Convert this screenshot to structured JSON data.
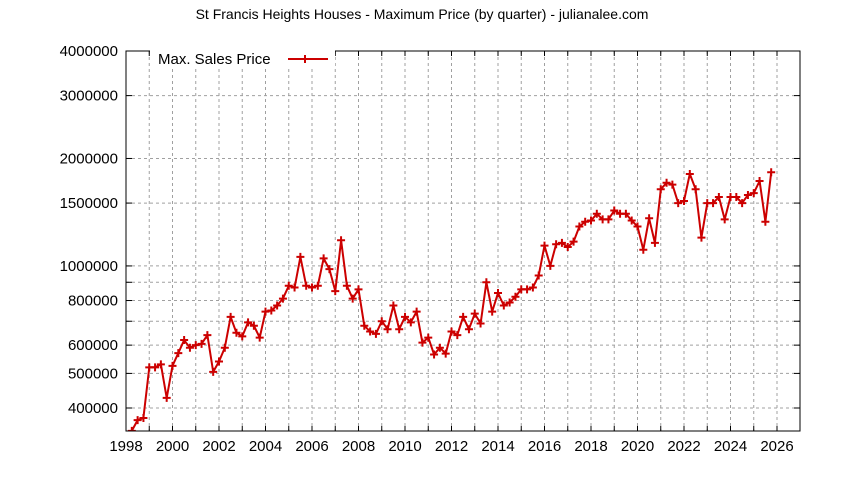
{
  "title": "St Francis Heights Houses - Maximum Price (by quarter) - julianalee.com",
  "legend": {
    "label": "Max. Sales Price",
    "color": "#cc0000"
  },
  "colors": {
    "series": "#cc0000",
    "grid": "#a0a0a0",
    "axis": "#000000"
  },
  "chart_data": {
    "type": "line",
    "title": "St Francis Heights Houses - Maximum Price (by quarter) - julianalee.com",
    "xlabel": "",
    "ylabel": "",
    "yscale": "log",
    "xlim": [
      1998,
      2027
    ],
    "ylim": [
      345000,
      4000000
    ],
    "grid": true,
    "legend_position": "top-left",
    "x_ticks": [
      1998,
      2000,
      2002,
      2004,
      2006,
      2008,
      2010,
      2012,
      2014,
      2016,
      2018,
      2020,
      2022,
      2024,
      2026
    ],
    "y_ticks": [
      400000,
      500000,
      600000,
      800000,
      1000000,
      1500000,
      2000000,
      3000000,
      4000000
    ],
    "y_tick_labels": [
      "400000",
      "500000",
      "600000",
      "800000",
      "1000000",
      "1500000",
      "2000000",
      "3000000",
      "4000000"
    ],
    "y_minor_gridlines": [
      700000,
      900000
    ],
    "series": [
      {
        "name": "Max. Sales Price",
        "x": [
          1998.25,
          1998.5,
          1998.75,
          1999.0,
          1999.25,
          1999.5,
          1999.75,
          2000.0,
          2000.25,
          2000.5,
          2000.75,
          2001.0,
          2001.25,
          2001.5,
          2001.75,
          2002.0,
          2002.25,
          2002.5,
          2002.75,
          2003.0,
          2003.25,
          2003.5,
          2003.75,
          2004.0,
          2004.25,
          2004.5,
          2004.75,
          2005.0,
          2005.25,
          2005.5,
          2005.75,
          2006.0,
          2006.25,
          2006.5,
          2006.75,
          2007.0,
          2007.25,
          2007.5,
          2007.75,
          2008.0,
          2008.25,
          2008.5,
          2008.75,
          2009.0,
          2009.25,
          2009.5,
          2009.75,
          2010.0,
          2010.25,
          2010.5,
          2010.75,
          2011.0,
          2011.25,
          2011.5,
          2011.75,
          2012.0,
          2012.25,
          2012.5,
          2012.75,
          2013.0,
          2013.25,
          2013.5,
          2013.75,
          2014.0,
          2014.25,
          2014.5,
          2014.75,
          2015.0,
          2015.25,
          2015.5,
          2015.75,
          2016.0,
          2016.25,
          2016.5,
          2016.75,
          2017.0,
          2017.25,
          2017.5,
          2017.75,
          2018.0,
          2018.25,
          2018.5,
          2018.75,
          2019.0,
          2019.25,
          2019.5,
          2019.75,
          2020.0,
          2020.25,
          2020.5,
          2020.75,
          2021.0,
          2021.25,
          2021.5,
          2021.75,
          2022.0,
          2022.25,
          2022.5,
          2022.75,
          2023.0,
          2023.25,
          2023.5,
          2023.75,
          2024.0,
          2024.25,
          2024.5,
          2024.75,
          2025.0,
          2025.25,
          2025.5,
          2025.75
        ],
        "values": [
          345000,
          370000,
          375000,
          520000,
          520000,
          530000,
          427000,
          525000,
          570000,
          620000,
          590000,
          600000,
          605000,
          640000,
          505000,
          540000,
          590000,
          720000,
          650000,
          635000,
          695000,
          680000,
          630000,
          745000,
          750000,
          775000,
          810000,
          880000,
          870000,
          1060000,
          880000,
          870000,
          880000,
          1050000,
          980000,
          850000,
          1180000,
          880000,
          810000,
          860000,
          680000,
          655000,
          645000,
          700000,
          665000,
          775000,
          665000,
          720000,
          695000,
          745000,
          610000,
          630000,
          565000,
          590000,
          568000,
          655000,
          640000,
          720000,
          665000,
          735000,
          690000,
          900000,
          745000,
          840000,
          775000,
          790000,
          820000,
          860000,
          860000,
          870000,
          940000,
          1140000,
          1000000,
          1150000,
          1160000,
          1130000,
          1170000,
          1290000,
          1330000,
          1340000,
          1400000,
          1350000,
          1350000,
          1430000,
          1400000,
          1400000,
          1340000,
          1290000,
          1110000,
          1360000,
          1160000,
          1640000,
          1710000,
          1690000,
          1500000,
          1520000,
          1810000,
          1640000,
          1200000,
          1500000,
          1500000,
          1560000,
          1350000,
          1560000,
          1560000,
          1500000,
          1580000,
          1600000,
          1730000,
          1330000,
          1830000
        ]
      }
    ]
  }
}
